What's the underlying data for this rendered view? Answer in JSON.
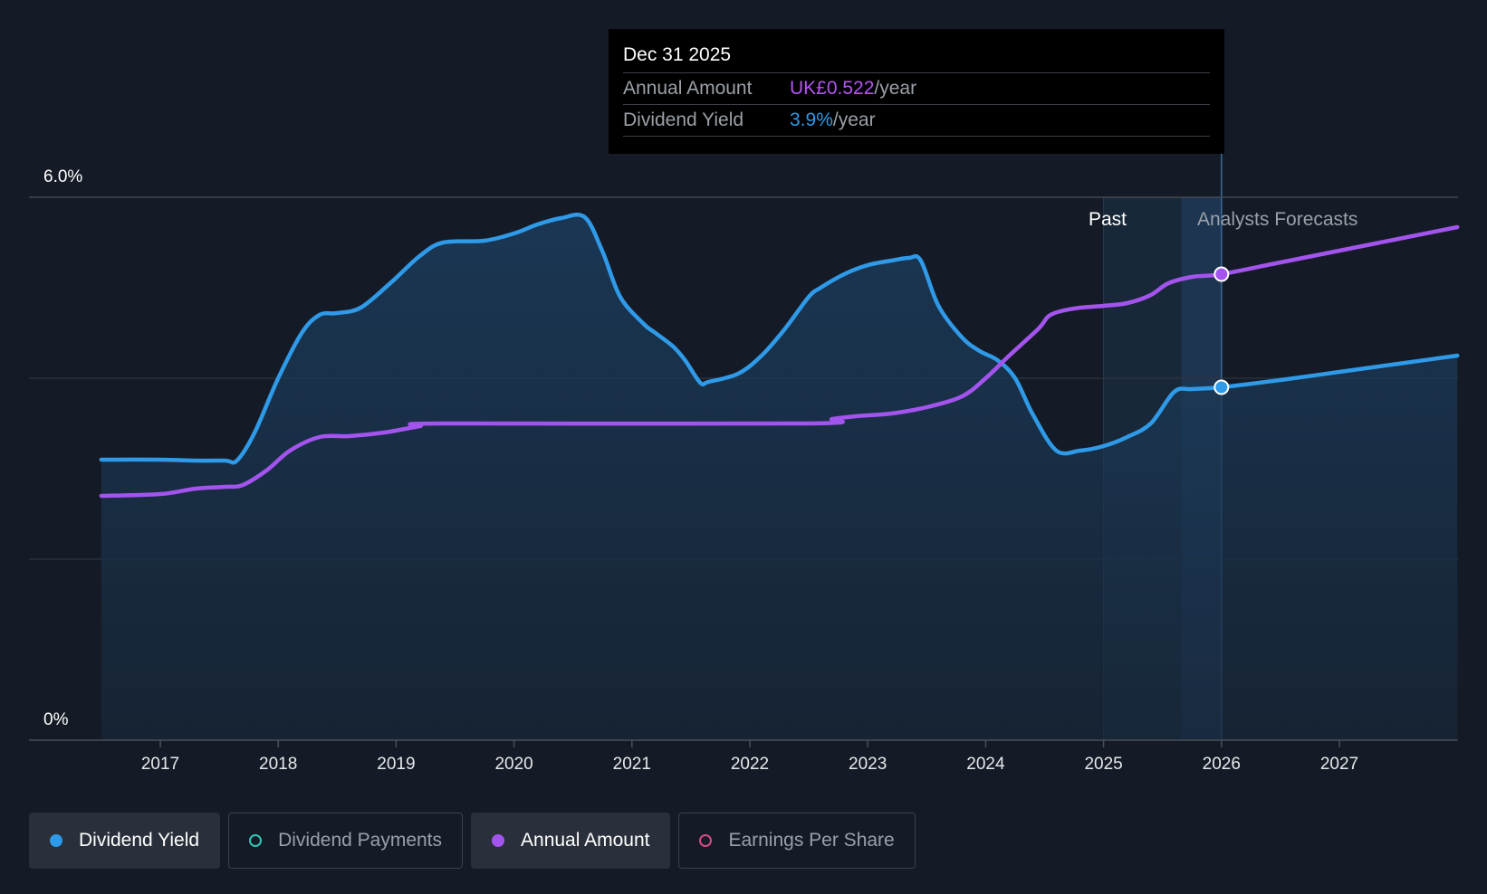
{
  "chart_data": {
    "type": "line",
    "y_axis": {
      "min": 0,
      "max": 6,
      "unit": "%",
      "tick_labels": [
        "0%",
        "6.0%"
      ]
    },
    "x_axis": {
      "min": 2016.0,
      "max": 2028.0,
      "tick_labels": [
        "2017",
        "2018",
        "2019",
        "2020",
        "2021",
        "2022",
        "2023",
        "2024",
        "2025",
        "2026",
        "2027"
      ]
    },
    "regions": {
      "past_label": "Past",
      "forecast_label": "Analysts Forecasts",
      "past_start": 2025.0,
      "hover_start": 2025.66,
      "forecast_start": 2026.0
    },
    "series": [
      {
        "name": "Dividend Yield",
        "color": "#2f9ae8",
        "filled": true,
        "points": [
          [
            2016.5,
            3.1
          ],
          [
            2017.0,
            3.1
          ],
          [
            2017.3,
            3.09
          ],
          [
            2017.55,
            3.09
          ],
          [
            2017.65,
            3.09
          ],
          [
            2017.8,
            3.4
          ],
          [
            2018.0,
            4.0
          ],
          [
            2018.2,
            4.5
          ],
          [
            2018.35,
            4.7
          ],
          [
            2018.5,
            4.72
          ],
          [
            2018.7,
            4.78
          ],
          [
            2018.95,
            5.05
          ],
          [
            2019.2,
            5.35
          ],
          [
            2019.4,
            5.5
          ],
          [
            2019.75,
            5.52
          ],
          [
            2020.0,
            5.6
          ],
          [
            2020.2,
            5.7
          ],
          [
            2020.4,
            5.77
          ],
          [
            2020.6,
            5.78
          ],
          [
            2020.75,
            5.4
          ],
          [
            2020.9,
            4.9
          ],
          [
            2021.1,
            4.6
          ],
          [
            2021.2,
            4.5
          ],
          [
            2021.35,
            4.35
          ],
          [
            2021.45,
            4.2
          ],
          [
            2021.58,
            3.95
          ],
          [
            2021.65,
            3.96
          ],
          [
            2021.9,
            4.05
          ],
          [
            2022.1,
            4.25
          ],
          [
            2022.3,
            4.55
          ],
          [
            2022.5,
            4.9
          ],
          [
            2022.6,
            5.0
          ],
          [
            2022.8,
            5.15
          ],
          [
            2023.0,
            5.25
          ],
          [
            2023.2,
            5.3
          ],
          [
            2023.35,
            5.33
          ],
          [
            2023.45,
            5.3
          ],
          [
            2023.6,
            4.8
          ],
          [
            2023.8,
            4.45
          ],
          [
            2023.95,
            4.3
          ],
          [
            2024.1,
            4.2
          ],
          [
            2024.25,
            4.0
          ],
          [
            2024.4,
            3.6
          ],
          [
            2024.6,
            3.2
          ],
          [
            2024.8,
            3.2
          ],
          [
            2025.0,
            3.25
          ],
          [
            2025.2,
            3.35
          ],
          [
            2025.4,
            3.5
          ],
          [
            2025.6,
            3.85
          ],
          [
            2025.75,
            3.88
          ],
          [
            2026.0,
            3.9
          ],
          [
            2026.5,
            3.98
          ],
          [
            2027.0,
            4.07
          ],
          [
            2027.5,
            4.16
          ],
          [
            2028.0,
            4.25
          ]
        ]
      },
      {
        "name": "Annual Amount",
        "color": "#a454ee",
        "filled": false,
        "points": [
          [
            2016.5,
            2.7
          ],
          [
            2017.0,
            2.72
          ],
          [
            2017.3,
            2.78
          ],
          [
            2017.55,
            2.8
          ],
          [
            2017.7,
            2.82
          ],
          [
            2017.9,
            2.98
          ],
          [
            2018.1,
            3.2
          ],
          [
            2018.35,
            3.35
          ],
          [
            2018.6,
            3.36
          ],
          [
            2018.9,
            3.4
          ],
          [
            2019.2,
            3.47
          ],
          [
            2019.4,
            3.5
          ],
          [
            2022.5,
            3.5
          ],
          [
            2022.7,
            3.55
          ],
          [
            2022.9,
            3.58
          ],
          [
            2023.2,
            3.61
          ],
          [
            2023.5,
            3.68
          ],
          [
            2023.8,
            3.8
          ],
          [
            2024.0,
            4.0
          ],
          [
            2024.2,
            4.25
          ],
          [
            2024.45,
            4.55
          ],
          [
            2024.55,
            4.7
          ],
          [
            2024.75,
            4.77
          ],
          [
            2025.0,
            4.8
          ],
          [
            2025.2,
            4.83
          ],
          [
            2025.4,
            4.92
          ],
          [
            2025.55,
            5.05
          ],
          [
            2025.75,
            5.12
          ],
          [
            2026.0,
            5.15
          ],
          [
            2026.5,
            5.28
          ],
          [
            2027.0,
            5.41
          ],
          [
            2027.5,
            5.54
          ],
          [
            2028.0,
            5.67
          ]
        ]
      }
    ],
    "highlight_x": 2026.0
  },
  "tooltip": {
    "date": "Dec 31 2025",
    "rows": [
      {
        "key": "Annual Amount",
        "value": "UK£0.522",
        "unit": "/year"
      },
      {
        "key": "Dividend Yield",
        "value": "3.9%",
        "unit": "/year"
      }
    ]
  },
  "legend": [
    {
      "label": "Dividend Yield",
      "active": true,
      "color": "#2f9ae8"
    },
    {
      "label": "Dividend Payments",
      "active": false,
      "color": "#2fc8b4"
    },
    {
      "label": "Annual Amount",
      "active": true,
      "color": "#a454ee"
    },
    {
      "label": "Earnings Per Share",
      "active": false,
      "color": "#d64a86"
    }
  ]
}
